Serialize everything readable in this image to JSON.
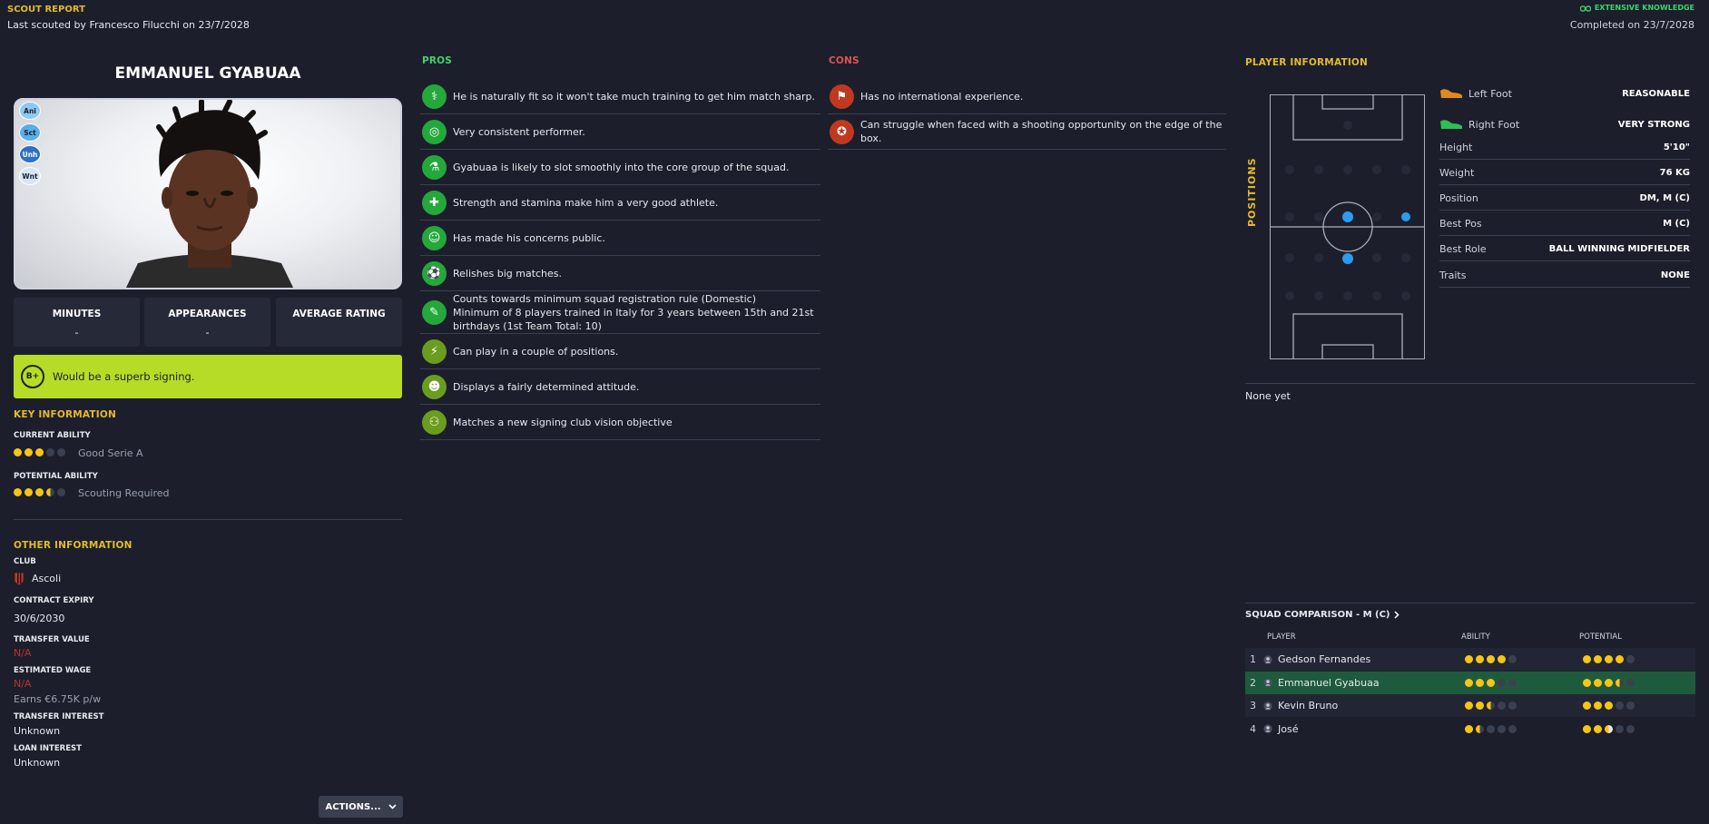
{
  "header": {
    "title": "SCOUT REPORT",
    "subtitle": "Last scouted by Francesco Filucchi on 23/7/2028",
    "knowledge": "EXTENSIVE KNOWLEDGE",
    "completed": "Completed on 23/7/2028"
  },
  "player": {
    "name": "EMMANUEL GYABUAA",
    "personality_badges": [
      "Ani",
      "Sct",
      "Unh",
      "Wnt"
    ]
  },
  "stats": [
    {
      "title": "MINUTES",
      "value": "-"
    },
    {
      "title": "APPEARANCES",
      "value": "-"
    },
    {
      "title": "AVERAGE RATING",
      "value": ""
    }
  ],
  "verdict": {
    "grade": "B+",
    "text": "Would be a superb signing."
  },
  "key_info": {
    "title": "KEY INFORMATION",
    "current_label": "CURRENT ABILITY",
    "current_stars": 3,
    "current_text": "Good Serie A",
    "potential_label": "POTENTIAL ABILITY",
    "potential_stars": 3.5,
    "potential_text": "Scouting Required"
  },
  "other_info": {
    "title": "OTHER INFORMATION",
    "club_label": "CLUB",
    "club": "Ascoli",
    "contract_label": "CONTRACT EXPIRY",
    "contract": "30/6/2030",
    "transfer_value_label": "TRANSFER VALUE",
    "transfer_value": "N/A",
    "wage_label": "ESTIMATED WAGE",
    "wage": "N/A",
    "wage_note": "Earns €6.75K p/w",
    "transfer_interest_label": "TRANSFER INTEREST",
    "transfer_interest": "Unknown",
    "loan_interest_label": "LOAN INTEREST",
    "loan_interest": "Unknown"
  },
  "actions_label": "ACTIONS...",
  "pros": {
    "title": "PROS",
    "items": [
      {
        "icon": "dna-icon",
        "text": "He is naturally fit so it won't take much training to get him match sharp."
      },
      {
        "icon": "target-icon",
        "text": "Very consistent performer."
      },
      {
        "icon": "flask-icon",
        "text": "Gyabuaa is likely to slot smoothly into the core group of the squad."
      },
      {
        "icon": "bandage-icon",
        "text": "Strength and stamina make him a very good athlete."
      },
      {
        "icon": "smiley-icon",
        "text": "Has made his concerns public."
      },
      {
        "icon": "ball-icon",
        "text": "Relishes big matches."
      },
      {
        "icon": "document-icon",
        "text": "Counts towards minimum squad registration rule (Domestic)",
        "text2": "Minimum of 8 players trained in Italy for 3 years between 15th and 21st birthdays (1st Team Total: 10)"
      },
      {
        "icon": "boots-icon",
        "text": "Can play in a couple of positions."
      },
      {
        "icon": "head-icon",
        "text": "Displays a fairly determined attitude."
      },
      {
        "icon": "group-icon",
        "text": "Matches a new signing club vision objective"
      }
    ]
  },
  "cons": {
    "title": "CONS",
    "items": [
      {
        "icon": "flag-icon",
        "text": "Has no international experience."
      },
      {
        "icon": "medal-icon",
        "text": "Can struggle when faced with a shooting opportunity on the edge of the box."
      }
    ]
  },
  "player_info": {
    "title": "PLAYER INFORMATION",
    "positions_label": "POSITIONS",
    "rows": [
      {
        "key": "Left Foot",
        "value": "REASONABLE"
      },
      {
        "key": "Right Foot",
        "value": "VERY STRONG"
      },
      {
        "key": "Height",
        "value": "5'10\""
      },
      {
        "key": "Weight",
        "value": "76 KG"
      },
      {
        "key": "Position",
        "value": "DM, M (C)"
      },
      {
        "key": "Best Pos",
        "value": "M (C)"
      },
      {
        "key": "Best Role",
        "value": "BALL WINNING MIDFIELDER"
      },
      {
        "key": "Traits",
        "value": "NONE"
      }
    ],
    "none_yet": "None yet"
  },
  "squad_comparison": {
    "title": "SQUAD COMPARISON - M (C)",
    "col_player": "PLAYER",
    "col_ability": "ABILITY",
    "col_potential": "POTENTIAL",
    "rows": [
      {
        "rank": "1",
        "name": "Gedson Fernandes",
        "ability": 4,
        "potential": 4
      },
      {
        "rank": "2",
        "name": "Emmanuel Gyabuaa",
        "ability": 3,
        "potential": 3.5
      },
      {
        "rank": "3",
        "name": "Kevin Bruno",
        "ability": 2.5,
        "potential": 3
      },
      {
        "rank": "4",
        "name": "José",
        "ability": 1.5,
        "potential": 2.5
      }
    ]
  },
  "colors": {
    "background": "#1c1f2b",
    "gold": "#e5b92f",
    "green": "#3fd26e",
    "verdict": "#b7dc27",
    "star": "#f5c518",
    "highlight_row": "#1e5b3c"
  }
}
